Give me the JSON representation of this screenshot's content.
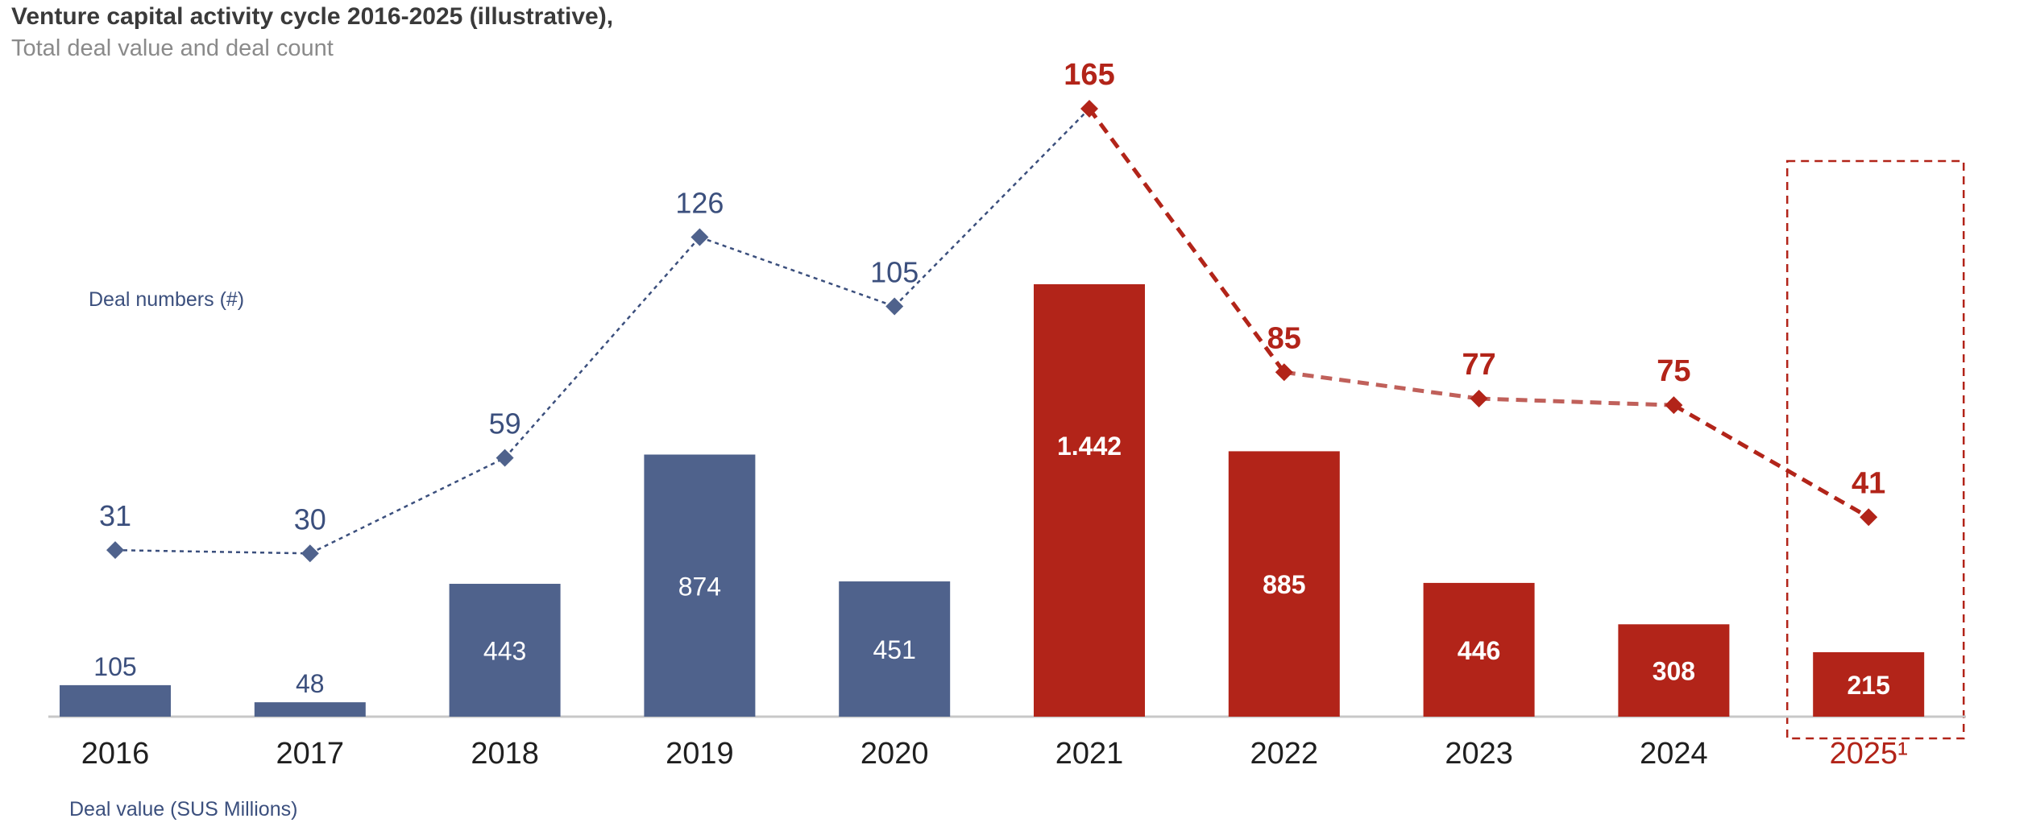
{
  "chart_data": {
    "type": "bar",
    "title": "Venture capital activity cycle 2016-2025 (illustrative),",
    "subtitle": "Total deal value and deal count",
    "categories": [
      "2016",
      "2017",
      "2018",
      "2019",
      "2020",
      "2021",
      "2022",
      "2023",
      "2024",
      "2025"
    ],
    "x_tick_labels": [
      "2016",
      "2017",
      "2018",
      "2019",
      "2020",
      "2021",
      "2022",
      "2023",
      "2024",
      "2025¹"
    ],
    "highlight_start_index": 5,
    "highlight_box_category": "2025",
    "series": [
      {
        "name": "Deal value (SUS Millions)",
        "type": "bar",
        "values": [
          105,
          48,
          443,
          874,
          451,
          1442,
          885,
          446,
          308,
          215
        ],
        "labels": [
          "105",
          "48",
          "443",
          "874",
          "451",
          "1.442",
          "885",
          "446",
          "308",
          "215"
        ]
      },
      {
        "name": "Deal numbers (#)",
        "type": "line",
        "values": [
          31,
          30,
          59,
          126,
          105,
          165,
          85,
          77,
          75,
          41
        ],
        "labels": [
          "31",
          "30",
          "59",
          "126",
          "105",
          "165",
          "85",
          "77",
          "75",
          "41"
        ]
      }
    ],
    "bar_axis_label": "Deal value (SUS Millions)",
    "line_axis_label": "Deal numbers (#)",
    "bar_ylim": [
      0,
      1450
    ],
    "line_ylim": [
      0,
      165
    ],
    "colors": {
      "blue": "#4f628c",
      "blue_line": "#3b4f7d",
      "red": "#b22419",
      "red_line_faded": "#c0605a",
      "axis": "#c8c8c8",
      "tick_text": "#1f1f1f"
    }
  }
}
